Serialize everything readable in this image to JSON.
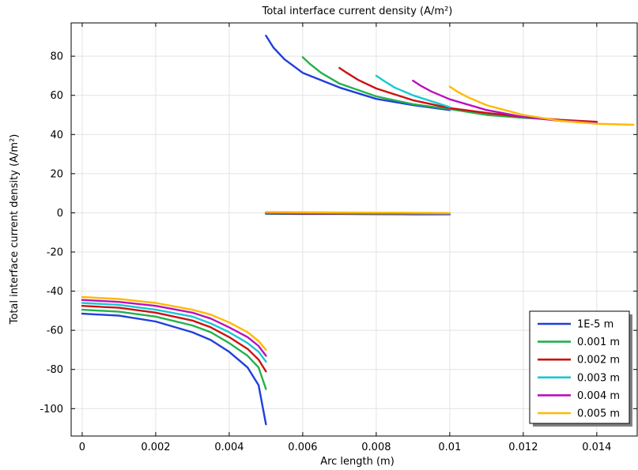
{
  "chart_data": {
    "type": "line",
    "title": "Total interface current density (A/m²)",
    "xlabel": "Arc length (m)",
    "ylabel": "Total interface current density (A/m²)",
    "xlim": [
      -0.0003,
      0.0151
    ],
    "ylim": [
      -114,
      97
    ],
    "x_ticks": [
      0,
      0.002,
      0.004,
      0.006,
      0.008,
      0.01,
      0.012,
      0.014
    ],
    "x_tick_labels": [
      "0",
      "0.002",
      "0.004",
      "0.006",
      "0.008",
      "0.01",
      "0.012",
      "0.014"
    ],
    "y_ticks": [
      -100,
      -80,
      -60,
      -40,
      -20,
      0,
      20,
      40,
      60,
      80
    ],
    "y_tick_labels": [
      "-100",
      "-80",
      "-60",
      "-40",
      "-20",
      "0",
      "20",
      "40",
      "60",
      "80"
    ],
    "grid": true,
    "legend_position": "bottom-right",
    "series": [
      {
        "name": "1E-5 m",
        "color": "#1f3fdc",
        "segments": [
          [
            [
              0,
              -51.5
            ],
            [
              0.001,
              -52.5
            ],
            [
              0.002,
              -55.5
            ],
            [
              0.003,
              -61
            ],
            [
              0.0035,
              -65
            ],
            [
              0.004,
              -71
            ],
            [
              0.0045,
              -79
            ],
            [
              0.0048,
              -88
            ],
            [
              0.005,
              -108
            ]
          ],
          [
            [
              0.005,
              -0.5
            ],
            [
              0.006,
              -0.6
            ],
            [
              0.007,
              -0.6
            ],
            [
              0.008,
              -0.7
            ],
            [
              0.009,
              -0.8
            ],
            [
              0.01,
              -0.8
            ]
          ],
          [
            [
              0.005,
              90.5
            ],
            [
              0.0052,
              84.5
            ],
            [
              0.0055,
              78.5
            ],
            [
              0.006,
              71.5
            ],
            [
              0.007,
              64
            ],
            [
              0.008,
              58.2
            ],
            [
              0.009,
              55
            ],
            [
              0.01,
              52.5
            ]
          ]
        ]
      },
      {
        "name": "0.001 m",
        "color": "#22b14c",
        "segments": [
          [
            [
              0,
              -49.5
            ],
            [
              0.001,
              -50.5
            ],
            [
              0.002,
              -53
            ],
            [
              0.003,
              -57.5
            ],
            [
              0.0035,
              -61
            ],
            [
              0.004,
              -66.5
            ],
            [
              0.0045,
              -73
            ],
            [
              0.0048,
              -79
            ],
            [
              0.005,
              -90
            ]
          ],
          [
            [
              0.005,
              -0.3
            ],
            [
              0.006,
              -0.4
            ],
            [
              0.007,
              -0.5
            ],
            [
              0.008,
              -0.6
            ],
            [
              0.009,
              -0.6
            ],
            [
              0.01,
              -0.7
            ]
          ],
          [
            [
              0.006,
              79.5
            ],
            [
              0.0062,
              76
            ],
            [
              0.0065,
              71.5
            ],
            [
              0.007,
              66
            ],
            [
              0.008,
              59.5
            ],
            [
              0.009,
              55.5
            ],
            [
              0.01,
              53
            ],
            [
              0.011,
              50
            ],
            [
              0.012,
              48.5
            ],
            [
              0.013,
              47.5
            ]
          ]
        ]
      },
      {
        "name": "0.002 m",
        "color": "#cc1111",
        "segments": [
          [
            [
              0,
              -47.5
            ],
            [
              0.001,
              -48.5
            ],
            [
              0.002,
              -51
            ],
            [
              0.003,
              -55
            ],
            [
              0.0035,
              -58.5
            ],
            [
              0.004,
              -63.5
            ],
            [
              0.0045,
              -69.5
            ],
            [
              0.0048,
              -75
            ],
            [
              0.005,
              -81
            ]
          ],
          [
            [
              0.005,
              -0.2
            ],
            [
              0.006,
              -0.3
            ],
            [
              0.007,
              -0.4
            ],
            [
              0.008,
              -0.5
            ],
            [
              0.009,
              -0.6
            ],
            [
              0.01,
              -0.6
            ]
          ],
          [
            [
              0.007,
              74
            ],
            [
              0.0072,
              71.5
            ],
            [
              0.0075,
              68
            ],
            [
              0.008,
              63.5
            ],
            [
              0.009,
              57.5
            ],
            [
              0.01,
              53.5
            ],
            [
              0.011,
              51
            ],
            [
              0.012,
              49
            ],
            [
              0.013,
              47.5
            ],
            [
              0.014,
              46.5
            ]
          ]
        ]
      },
      {
        "name": "0.003 m",
        "color": "#17c8d4",
        "segments": [
          [
            [
              0,
              -46
            ],
            [
              0.001,
              -47
            ],
            [
              0.002,
              -49.5
            ],
            [
              0.003,
              -53
            ],
            [
              0.0035,
              -56.5
            ],
            [
              0.004,
              -61
            ],
            [
              0.0045,
              -66.5
            ],
            [
              0.0048,
              -71
            ],
            [
              0.005,
              -76
            ]
          ],
          [
            [
              0.005,
              0
            ],
            [
              0.006,
              -0.1
            ],
            [
              0.007,
              -0.2
            ],
            [
              0.008,
              -0.3
            ],
            [
              0.009,
              -0.4
            ],
            [
              0.01,
              -0.5
            ]
          ],
          [
            [
              0.008,
              70
            ],
            [
              0.0082,
              67.5
            ],
            [
              0.0085,
              64
            ],
            [
              0.009,
              60
            ],
            [
              0.0095,
              57
            ],
            [
              0.01,
              54
            ]
          ]
        ]
      },
      {
        "name": "0.004 m",
        "color": "#bb11bb",
        "segments": [
          [
            [
              0,
              -44.5
            ],
            [
              0.001,
              -45.5
            ],
            [
              0.002,
              -47.5
            ],
            [
              0.003,
              -51
            ],
            [
              0.0035,
              -54
            ],
            [
              0.004,
              -58.5
            ],
            [
              0.0045,
              -63.5
            ],
            [
              0.0048,
              -68
            ],
            [
              0.005,
              -73
            ]
          ],
          [
            [
              0.005,
              0.2
            ],
            [
              0.006,
              0.1
            ],
            [
              0.007,
              0
            ],
            [
              0.008,
              -0.1
            ],
            [
              0.009,
              -0.2
            ],
            [
              0.01,
              -0.3
            ]
          ],
          [
            [
              0.009,
              67.5
            ],
            [
              0.0092,
              65
            ],
            [
              0.0095,
              62
            ],
            [
              0.01,
              58
            ],
            [
              0.011,
              52.5
            ],
            [
              0.012,
              49
            ],
            [
              0.013,
              47
            ],
            [
              0.014,
              46
            ]
          ]
        ]
      },
      {
        "name": "0.005 m",
        "color": "#ffba00",
        "segments": [
          [
            [
              0,
              -43
            ],
            [
              0.001,
              -44
            ],
            [
              0.002,
              -46
            ],
            [
              0.003,
              -49.5
            ],
            [
              0.0035,
              -52
            ],
            [
              0.004,
              -56
            ],
            [
              0.0045,
              -61
            ],
            [
              0.0048,
              -65.5
            ],
            [
              0.005,
              -70
            ]
          ],
          [
            [
              0.005,
              0.4
            ],
            [
              0.006,
              0.3
            ],
            [
              0.007,
              0.2
            ],
            [
              0.008,
              0.1
            ],
            [
              0.009,
              0
            ],
            [
              0.01,
              -0.1
            ]
          ],
          [
            [
              0.01,
              64.5
            ],
            [
              0.0102,
              62
            ],
            [
              0.0105,
              59
            ],
            [
              0.011,
              55
            ],
            [
              0.012,
              50
            ],
            [
              0.013,
              47
            ],
            [
              0.014,
              45.5
            ],
            [
              0.015,
              45
            ]
          ]
        ]
      }
    ]
  }
}
